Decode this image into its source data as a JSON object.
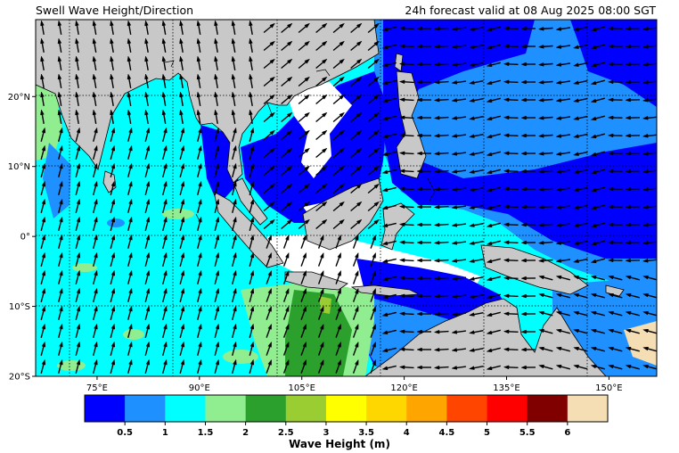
{
  "header": {
    "title": "Swell Wave Height/Direction",
    "valid_time": "24h forecast valid at 08 Aug 2025 08:00 SGT"
  },
  "map": {
    "lon_range": [
      66,
      157
    ],
    "lat_range": [
      -20,
      31
    ],
    "lon_ticks": [
      {
        "value": 75,
        "label": "75°E"
      },
      {
        "value": 90,
        "label": "90°E"
      },
      {
        "value": 105,
        "label": "105°E"
      },
      {
        "value": 120,
        "label": "120°E"
      },
      {
        "value": 135,
        "label": "135°E"
      },
      {
        "value": 150,
        "label": "150°E"
      }
    ],
    "lat_ticks": [
      {
        "value": 20,
        "label": "20°N"
      },
      {
        "value": 10,
        "label": "10°N"
      },
      {
        "value": 0,
        "label": "0°"
      },
      {
        "value": -10,
        "label": "10°S"
      },
      {
        "value": -20,
        "label": "20°S"
      }
    ],
    "grid": "dotted",
    "land_color": "#c8c8c8",
    "coastline_color": "#000000"
  },
  "colorbar": {
    "title": "Wave Height (m)",
    "colors": [
      "#0000ff",
      "#1e90ff",
      "#00ffff",
      "#90ee90",
      "#2ca02c",
      "#9acd32",
      "#ffff00",
      "#ffd700",
      "#ffa500",
      "#ff4500",
      "#ff0000",
      "#800000",
      "#f5deb3"
    ],
    "tick_labels": [
      "0.5",
      "1",
      "1.5",
      "2",
      "2.5",
      "3",
      "3.5",
      "4",
      "4.5",
      "5",
      "5.5",
      "6"
    ]
  }
}
